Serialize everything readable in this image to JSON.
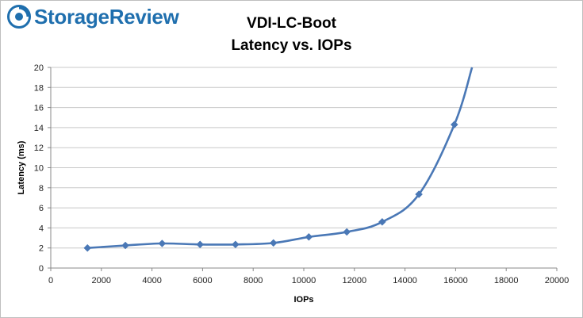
{
  "logo": {
    "text": "StorageReview",
    "icon": "storagereview-logo-icon",
    "color": "#1f6fae"
  },
  "chart_data": {
    "type": "line",
    "title": "VDI-LC-Boot",
    "subtitle": "Latency vs. IOPs",
    "xlabel": "IOPs",
    "ylabel": "Latency (ms)",
    "xlim": [
      0,
      20000
    ],
    "ylim": [
      0,
      20
    ],
    "x_ticks": [
      0,
      2000,
      4000,
      6000,
      8000,
      10000,
      12000,
      14000,
      16000,
      18000,
      20000
    ],
    "y_ticks": [
      0,
      2,
      4,
      6,
      8,
      10,
      12,
      14,
      16,
      18,
      20
    ],
    "grid": true,
    "legend": "none",
    "series": [
      {
        "color": "#4a78b6",
        "marker": "diamond",
        "x": [
          1450,
          2950,
          4400,
          5900,
          7300,
          8800,
          10200,
          11700,
          13100,
          14550,
          15950
        ],
        "y": [
          2.0,
          2.25,
          2.45,
          2.35,
          2.35,
          2.5,
          3.1,
          3.6,
          4.6,
          7.35,
          14.3
        ],
        "extends_to": {
          "x": 16650,
          "y": 20
        }
      }
    ]
  }
}
